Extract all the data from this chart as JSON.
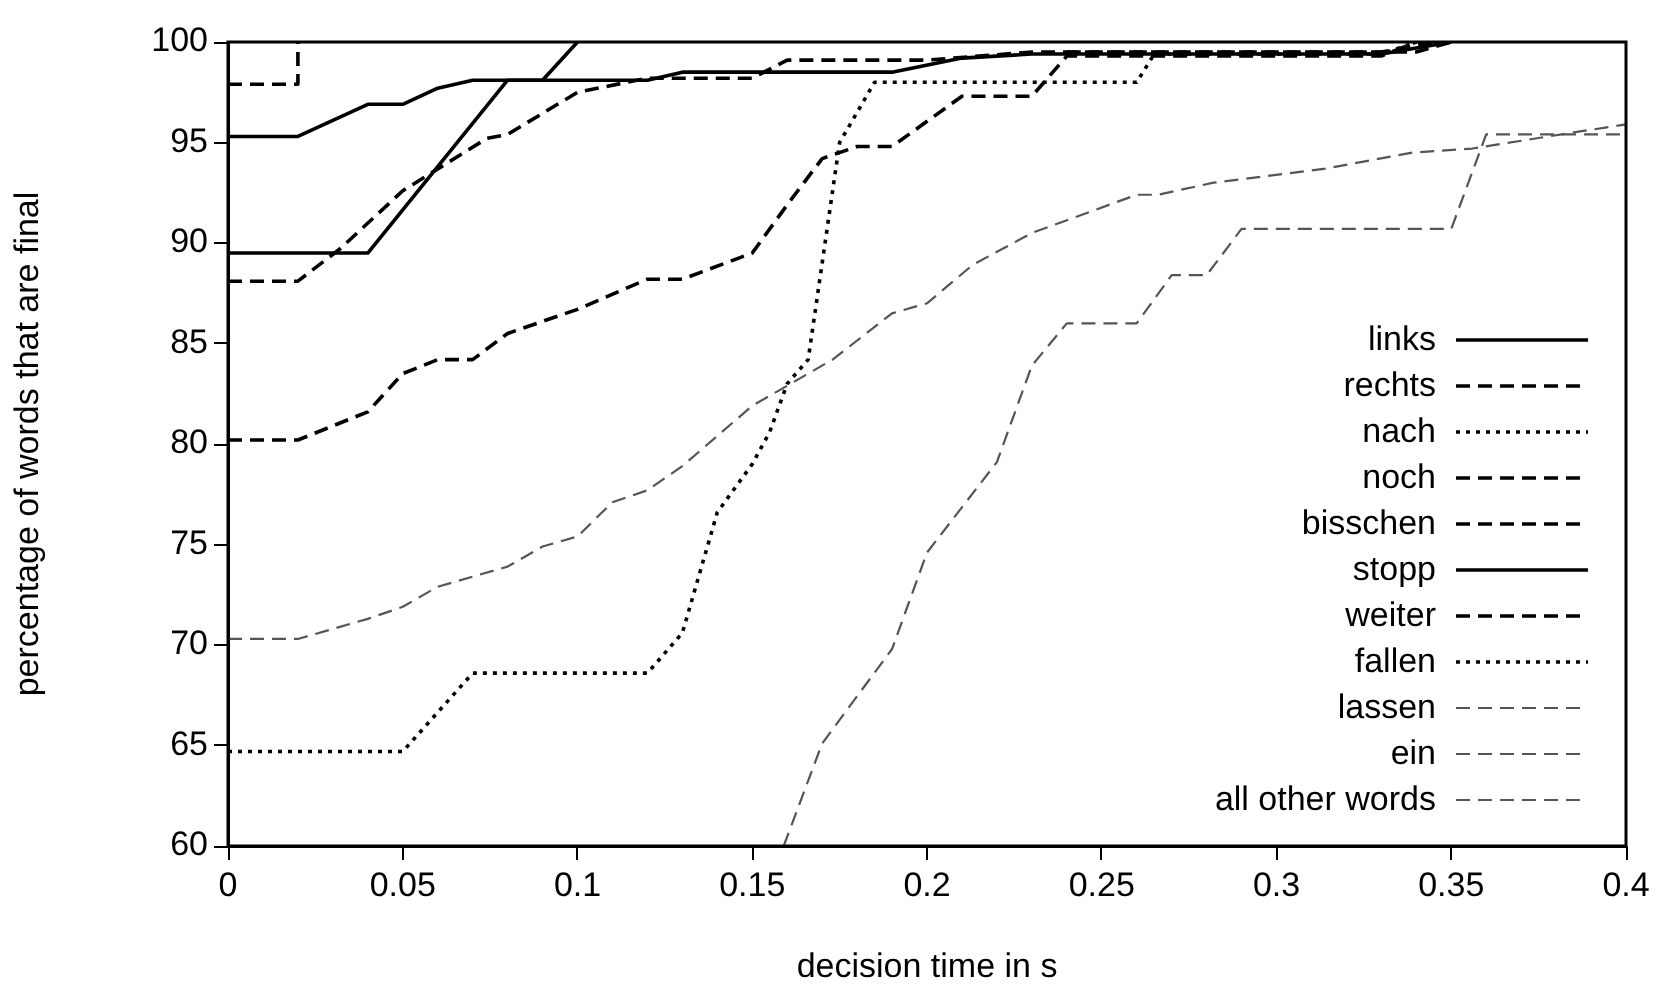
{
  "chart_data": {
    "type": "line",
    "xlabel": "decision time in s",
    "ylabel": "percentage of words that are final",
    "xlim": [
      0,
      0.4
    ],
    "ylim": [
      60,
      100
    ],
    "xticks": [
      0,
      0.05,
      0.1,
      0.15,
      0.2,
      0.25,
      0.3,
      0.35,
      0.4
    ],
    "yticks": [
      60,
      65,
      70,
      75,
      80,
      85,
      90,
      95,
      100
    ],
    "grid": false,
    "legend": "bottom right",
    "marker": "none",
    "series": [
      {
        "name": "links",
        "color": "#000000",
        "line_style": "solid",
        "x": [
          0,
          0.02,
          0.04,
          0.05,
          0.06,
          0.07,
          0.12,
          0.13,
          0.19,
          0.21,
          0.23,
          0.33,
          0.35
        ],
        "values": [
          95.3,
          95.3,
          96.9,
          96.9,
          97.7,
          98.1,
          98.1,
          98.5,
          98.5,
          99.2,
          99.4,
          99.4,
          100
        ]
      },
      {
        "name": "rechts",
        "color": "#000000",
        "line_style": "dashed",
        "x": [
          0,
          0.02,
          0.032,
          0.05,
          0.074,
          0.08,
          0.1,
          0.12,
          0.15,
          0.16,
          0.2,
          0.23,
          0.34,
          0.35
        ],
        "values": [
          88.1,
          88.1,
          89.7,
          92.6,
          95.2,
          95.4,
          97.5,
          98.2,
          98.2,
          99.1,
          99.1,
          99.5,
          99.5,
          100
        ]
      },
      {
        "name": "nach",
        "color": "#000000",
        "line_style": "dotted",
        "x": [
          0,
          0.05,
          0.07,
          0.12,
          0.13,
          0.14,
          0.15,
          0.155,
          0.16,
          0.166,
          0.175,
          0.185,
          0.26,
          0.265,
          0.33,
          0.34
        ],
        "values": [
          64.7,
          64.7,
          68.6,
          68.6,
          70.6,
          76.6,
          79,
          80.6,
          83,
          84.2,
          95,
          98,
          98,
          99.4,
          99.4,
          100
        ]
      },
      {
        "name": "noch",
        "color": "#000000",
        "line_style": "dashed",
        "x": [
          0,
          0.02,
          0.04,
          0.05,
          0.06,
          0.07,
          0.08,
          0.1,
          0.12,
          0.13,
          0.15,
          0.16,
          0.17,
          0.18,
          0.19,
          0.21,
          0.23,
          0.24,
          0.33,
          0.34
        ],
        "values": [
          80.2,
          80.2,
          81.6,
          83.5,
          84.2,
          84.2,
          85.5,
          86.7,
          88.2,
          88.2,
          89.5,
          91.9,
          94.2,
          94.8,
          94.8,
          97.3,
          97.3,
          99.3,
          99.3,
          100
        ]
      },
      {
        "name": "bisschen",
        "color": "#000000",
        "line_style": "dashed",
        "x": [
          0,
          0.02,
          0.02
        ],
        "values": [
          97.9,
          97.9,
          100
        ]
      },
      {
        "name": "stopp",
        "color": "#000000",
        "line_style": "solid",
        "x": [
          0,
          0.04,
          0.08,
          0.09,
          0.1
        ],
        "values": [
          89.5,
          89.5,
          98.1,
          98.1,
          100
        ]
      },
      {
        "name": "weiter",
        "color": "#000000",
        "line_style": "dashed",
        "x": [
          0.24,
          0.33,
          0.345
        ],
        "values": [
          99.5,
          99.5,
          100
        ]
      },
      {
        "name": "fallen",
        "color": "#000000",
        "line_style": "dotted"
      },
      {
        "name": "lassen",
        "color": "#555555",
        "line_style": "dashed",
        "x": [
          0.159,
          0.17,
          0.19,
          0.2,
          0.22,
          0.23,
          0.24,
          0.26,
          0.27,
          0.28,
          0.29,
          0.35,
          0.36,
          0.4
        ],
        "values": [
          60,
          65.1,
          69.8,
          74.6,
          79.1,
          83.9,
          86,
          86,
          88.4,
          88.4,
          90.7,
          90.7,
          95.4,
          95.4
        ]
      },
      {
        "name": "ein",
        "color": "#555555",
        "line_style": "dashed"
      },
      {
        "name": "all other words",
        "color": "#555555",
        "line_style": "dashed",
        "x": [
          0,
          0.02,
          0.04,
          0.05,
          0.06,
          0.08,
          0.09,
          0.1,
          0.11,
          0.12,
          0.13,
          0.15,
          0.16,
          0.173,
          0.19,
          0.2,
          0.213,
          0.23,
          0.26,
          0.266,
          0.282,
          0.314,
          0.339,
          0.356,
          0.385,
          0.4
        ],
        "values": [
          70.3,
          70.3,
          71.3,
          71.9,
          72.9,
          73.9,
          74.9,
          75.4,
          77.1,
          77.7,
          78.9,
          81.9,
          82.9,
          84.2,
          86.5,
          87,
          88.9,
          90.5,
          92.4,
          92.4,
          93,
          93.7,
          94.5,
          94.7,
          95.5,
          95.9
        ]
      }
    ]
  }
}
